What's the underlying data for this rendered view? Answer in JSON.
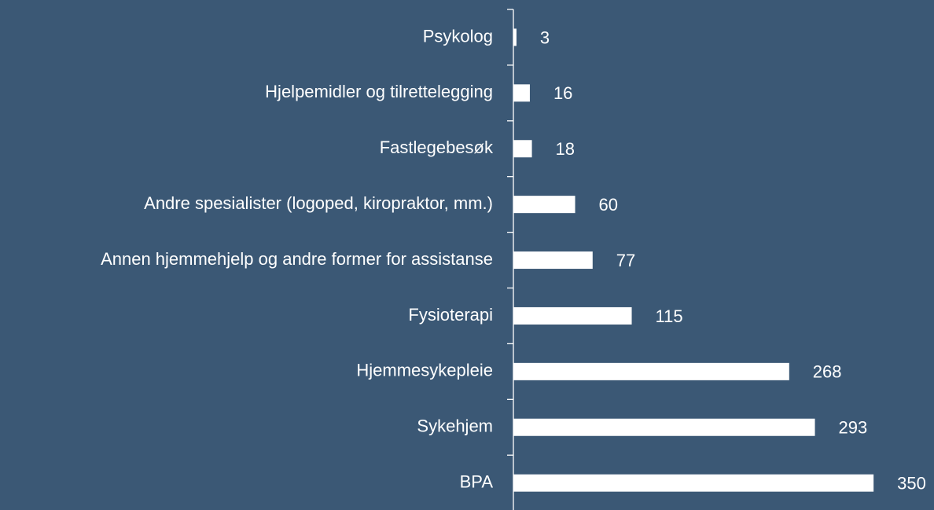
{
  "chart_data": {
    "type": "bar",
    "orientation": "horizontal",
    "categories": [
      "Psykolog",
      "Hjelpemidler og tilrettelegging",
      "Fastlegebesøk",
      "Andre spesialister (logoped, kiropraktor, mm.)",
      "Annen hjemmehjelp og andre former for assistanse",
      "Fysioterapi",
      "Hjemmesykepleie",
      "Sykehjem",
      "BPA"
    ],
    "values": [
      3,
      16,
      18,
      60,
      77,
      115,
      268,
      293,
      350
    ],
    "color": "#ffffff"
  }
}
